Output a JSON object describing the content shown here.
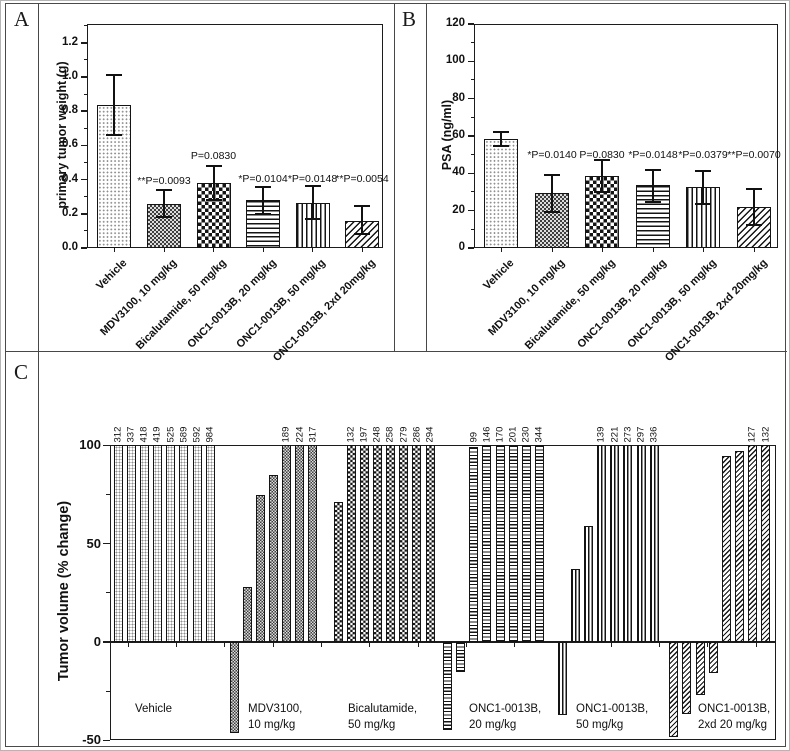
{
  "figure": {
    "panels": [
      {
        "label": "A"
      },
      {
        "label": "B"
      },
      {
        "label": "C"
      }
    ]
  },
  "chart_data": [
    {
      "id": "panel-a",
      "type": "bar",
      "title": "",
      "ylabel": "primary tumor weight (g)",
      "xlabel": "",
      "ylim": [
        0,
        1.31
      ],
      "grid": false,
      "yticks": [
        "0.0",
        "0.2",
        "0.4",
        "0.6",
        "0.8",
        "1.0",
        "1.2"
      ],
      "categories": [
        "Vehicle",
        "MDV3100, 10 mg/kg",
        "Bicalutamide, 50 mg/kg",
        "ONC1-0013B, 20 mg/kg",
        "ONC1-0013B, 50 mg/kg",
        "ONC1-0013B, 2xd 20mg/kg"
      ],
      "values": [
        0.835,
        0.26,
        0.38,
        0.28,
        0.265,
        0.16
      ],
      "errors_lo": [
        0.66,
        0.18,
        0.28,
        0.2,
        0.17,
        0.08
      ],
      "errors_hi": [
        1.01,
        0.34,
        0.48,
        0.355,
        0.36,
        0.245
      ],
      "p_labels": [
        null,
        "**P=0.0093",
        "P=0.0830",
        "*P=0.0104",
        "*P=0.0148",
        "**P=0.0054"
      ],
      "p_label_y": [
        null,
        0.386,
        0.532,
        0.397,
        0.397,
        0.397
      ],
      "patterns": [
        "dots",
        "checker-fine",
        "checker",
        "hstripe",
        "vstripe",
        "diag"
      ]
    },
    {
      "id": "panel-b",
      "type": "bar",
      "title": "",
      "ylabel": "PSA (ng/ml)",
      "xlabel": "",
      "ylim": [
        0,
        120
      ],
      "grid": false,
      "yticks": [
        "0",
        "20",
        "40",
        "60",
        "80",
        "100",
        "120"
      ],
      "categories": [
        "Vehicle",
        "MDV3100, 10 mg/kg",
        "Bicalutamide, 50 mg/kg",
        "ONC1-0013B, 20 mg/kg",
        "ONC1-0013B, 50 mg/kg",
        "ONC1-0013B, 2xd 20mg/kg"
      ],
      "values": [
        58.5,
        29.5,
        38.5,
        33.5,
        32.5,
        22
      ],
      "errors_lo": [
        54.5,
        19.5,
        30,
        24.5,
        23.5,
        12.5
      ],
      "errors_hi": [
        62,
        39,
        47,
        42,
        41.5,
        31.5
      ],
      "p_labels": [
        null,
        "*P=0.0140",
        "P=0.0830",
        "*P=0.0148",
        "*P=0.0379",
        "**P=0.0070"
      ],
      "p_label_y": [
        null,
        49.5,
        49.5,
        49.5,
        49.5,
        49.5
      ],
      "patterns": [
        "dots",
        "checker-fine",
        "checker",
        "hstripe",
        "vstripe",
        "diag"
      ]
    },
    {
      "id": "panel-c",
      "type": "bar",
      "title": "",
      "ylabel": "Tumor volume (% change)",
      "xlabel": "",
      "ylim": [
        -50,
        100
      ],
      "grid": false,
      "yticks": [
        "100",
        "50",
        "0",
        "-50"
      ],
      "note": "waterfall of individual tumors; bars capped at 100, actual value printed above capped bars",
      "groups": [
        {
          "label_lines": [
            "Vehicle"
          ],
          "pattern": "dots",
          "bars": [
            {
              "v": 100,
              "label": "312"
            },
            {
              "v": 100,
              "label": "337"
            },
            {
              "v": 100,
              "label": "418"
            },
            {
              "v": 100,
              "label": "419"
            },
            {
              "v": 100,
              "label": "525"
            },
            {
              "v": 100,
              "label": "589"
            },
            {
              "v": 100,
              "label": "592"
            },
            {
              "v": 100,
              "label": "984"
            }
          ]
        },
        {
          "label_lines": [
            "MDV3100,",
            "10 mg/kg"
          ],
          "pattern": "checker-fine",
          "bars": [
            {
              "v": -46.5
            },
            {
              "v": 28
            },
            {
              "v": 75
            },
            {
              "v": 85
            },
            {
              "v": 100,
              "label": "189"
            },
            {
              "v": 100,
              "label": "224"
            },
            {
              "v": 100,
              "label": "317"
            }
          ]
        },
        {
          "label_lines": [
            "Bicalutamide,",
            "50 mg/kg"
          ],
          "pattern": "checker",
          "bars": [
            {
              "v": 71
            },
            {
              "v": 100,
              "label": "132"
            },
            {
              "v": 100,
              "label": "197"
            },
            {
              "v": 100,
              "label": "248"
            },
            {
              "v": 100,
              "label": "258"
            },
            {
              "v": 100,
              "label": "279"
            },
            {
              "v": 100,
              "label": "286"
            },
            {
              "v": 100,
              "label": "294"
            }
          ]
        },
        {
          "label_lines": [
            "ONC1-0013B,",
            "20 mg/kg"
          ],
          "pattern": "hstripe",
          "bars": [
            {
              "v": -45
            },
            {
              "v": -15.5
            },
            {
              "v": 99,
              "label": "99"
            },
            {
              "v": 100,
              "label": "146"
            },
            {
              "v": 100,
              "label": "170"
            },
            {
              "v": 100,
              "label": "201"
            },
            {
              "v": 100,
              "label": "230"
            },
            {
              "v": 100,
              "label": "344"
            }
          ]
        },
        {
          "label_lines": [
            "ONC1-0013B,",
            "50 mg/kg"
          ],
          "pattern": "vstripe",
          "bars": [
            {
              "v": -37
            },
            {
              "v": 37
            },
            {
              "v": 59
            },
            {
              "v": 100,
              "label": "139"
            },
            {
              "v": 100,
              "label": "221"
            },
            {
              "v": 100,
              "label": "273"
            },
            {
              "v": 100,
              "label": "297"
            },
            {
              "v": 100,
              "label": "336"
            }
          ]
        },
        {
          "label_lines": [
            "ONC1-0013B,",
            "2xd 20 mg/kg"
          ],
          "pattern": "diag",
          "bars": [
            {
              "v": -48.5
            },
            {
              "v": -36.5
            },
            {
              "v": -27
            },
            {
              "v": -16
            },
            {
              "v": 94.5
            },
            {
              "v": 97
            },
            {
              "v": 100,
              "label": "127"
            },
            {
              "v": 100,
              "label": "132"
            }
          ]
        }
      ]
    }
  ]
}
